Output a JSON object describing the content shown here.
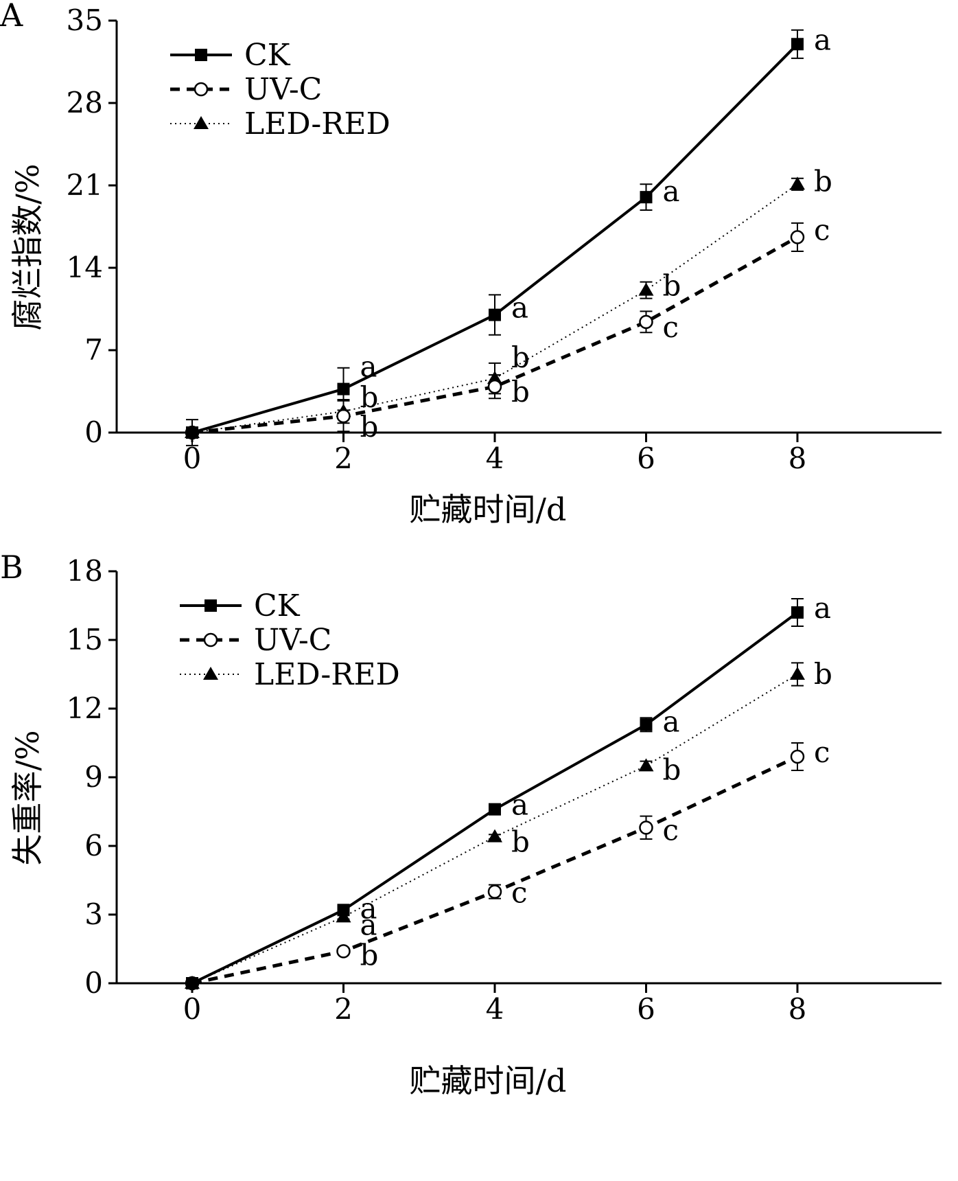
{
  "chart_data": [
    {
      "type": "line",
      "panel_label": "A",
      "xlabel": "贮藏时间/d",
      "ylabel": "腐烂指数/%",
      "x": [
        0,
        2,
        4,
        6,
        8
      ],
      "xticks": [
        "0",
        "2",
        "4",
        "6",
        "8"
      ],
      "ylim": [
        0,
        35
      ],
      "yticks": [
        "0",
        "7",
        "14",
        "21",
        "28",
        "35"
      ],
      "legend_position": "top-left",
      "series": [
        {
          "name": "CK",
          "style": "solid",
          "marker": "square",
          "values": [
            0,
            3.7,
            10.0,
            20.0,
            33.0
          ],
          "errors": [
            1.1,
            1.8,
            1.7,
            1.1,
            1.2
          ],
          "sig": [
            "",
            "a",
            "a",
            "a",
            "a"
          ]
        },
        {
          "name": "UV-C",
          "style": "dashed",
          "marker": "circle",
          "values": [
            0,
            1.4,
            3.9,
            9.4,
            16.6
          ],
          "errors": [
            0,
            1.3,
            1.0,
            0.9,
            1.2
          ],
          "sig": [
            "",
            "b",
            "b",
            "c",
            "c"
          ]
        },
        {
          "name": "LED-RED",
          "style": "dotted",
          "marker": "triangle",
          "values": [
            0,
            1.8,
            4.6,
            12.1,
            21.1
          ],
          "errors": [
            0,
            1.0,
            1.3,
            0.7,
            0.5
          ],
          "sig": [
            "",
            "b",
            "b",
            "b",
            "b"
          ]
        }
      ]
    },
    {
      "type": "line",
      "panel_label": "B",
      "xlabel": "贮藏时间/d",
      "ylabel": "失重率/%",
      "x": [
        0,
        2,
        4,
        6,
        8
      ],
      "xticks": [
        "0",
        "2",
        "4",
        "6",
        "8"
      ],
      "ylim": [
        0,
        18
      ],
      "yticks": [
        "0",
        "3",
        "6",
        "9",
        "12",
        "15",
        "18"
      ],
      "legend_position": "top-left",
      "series": [
        {
          "name": "CK",
          "style": "solid",
          "marker": "square",
          "values": [
            0,
            3.2,
            7.6,
            11.3,
            16.2
          ],
          "errors": [
            0,
            0.1,
            0.2,
            0.3,
            0.6
          ],
          "sig": [
            "",
            "a",
            "a",
            "a",
            "a"
          ]
        },
        {
          "name": "UV-C",
          "style": "dashed",
          "marker": "circle",
          "values": [
            0,
            1.4,
            4.0,
            6.8,
            9.9
          ],
          "errors": [
            0,
            0.1,
            0.3,
            0.5,
            0.6
          ],
          "sig": [
            "",
            "b",
            "c",
            "c",
            "c"
          ]
        },
        {
          "name": "LED-RED",
          "style": "dotted",
          "marker": "triangle",
          "values": [
            0,
            2.9,
            6.4,
            9.5,
            13.5
          ],
          "errors": [
            0,
            0.1,
            0.1,
            0.2,
            0.5
          ],
          "sig": [
            "",
            "a",
            "b",
            "b",
            "b"
          ]
        }
      ]
    }
  ]
}
